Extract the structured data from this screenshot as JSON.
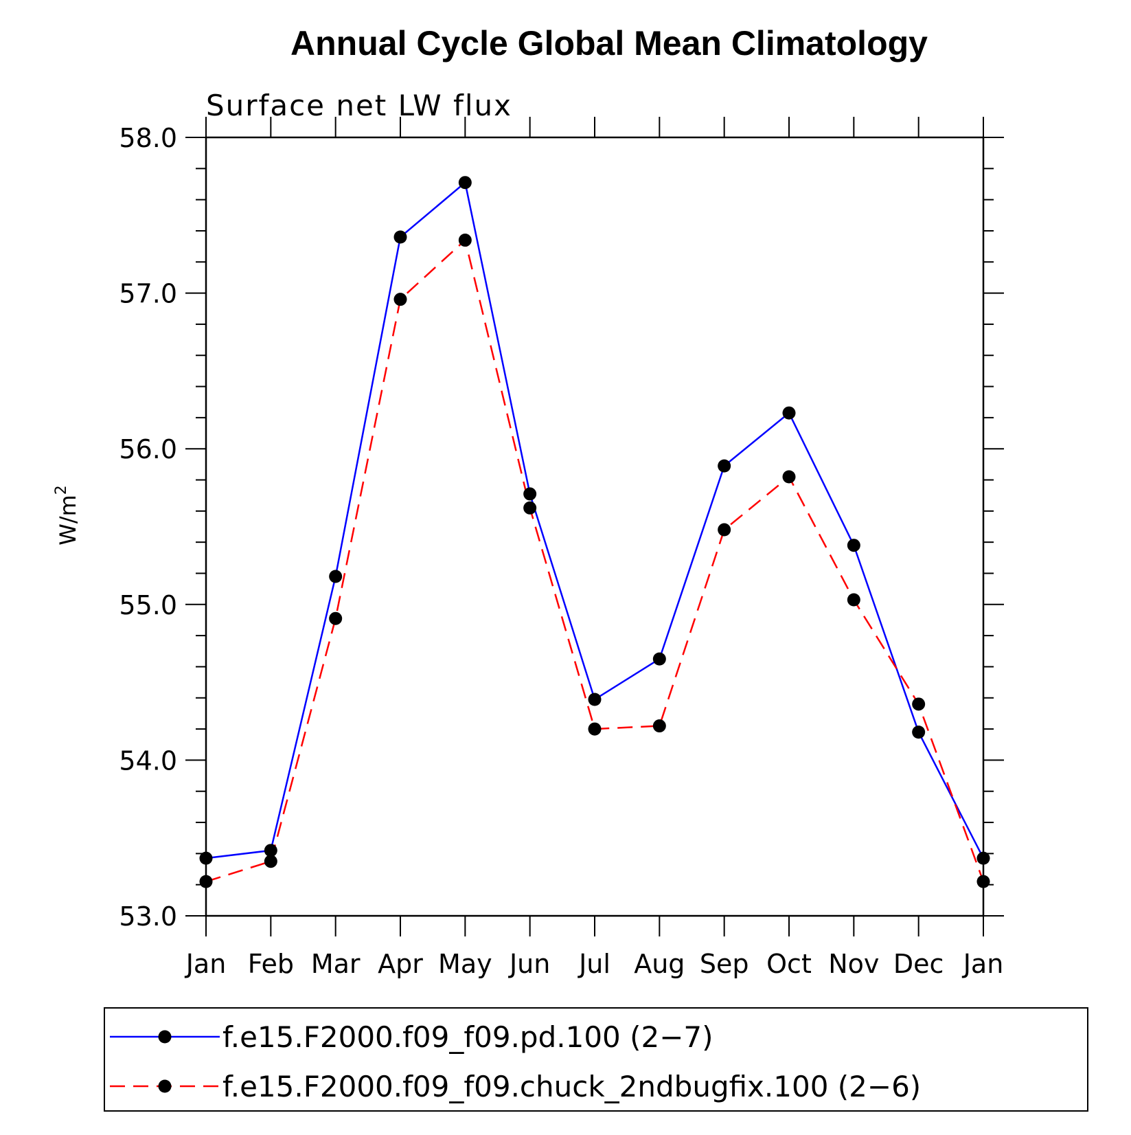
{
  "chart_data": {
    "type": "line",
    "title": "Annual Cycle Global Mean Climatology",
    "subtitle": "Surface net LW flux",
    "xlabel": "",
    "ylabel": "W/m",
    "ylabel_superscript": "2",
    "categories": [
      "Jan",
      "Feb",
      "Mar",
      "Apr",
      "May",
      "Jun",
      "Jul",
      "Aug",
      "Sep",
      "Oct",
      "Nov",
      "Dec",
      "Jan"
    ],
    "ylim": [
      53.0,
      58.0
    ],
    "yticks": [
      "53.0",
      "54.0",
      "55.0",
      "56.0",
      "57.0",
      "58.0"
    ],
    "series": [
      {
        "name": "f.e15.F2000.f09_f09.pd.100 (2−7)",
        "color": "#0000ff",
        "style": "solid",
        "values": [
          53.37,
          53.42,
          55.18,
          57.36,
          57.71,
          55.71,
          54.39,
          54.65,
          55.89,
          56.23,
          55.38,
          54.18,
          53.37
        ]
      },
      {
        "name": "f.e15.F2000.f09_f09.chuck_2ndbugfix.100 (2−6)",
        "color": "#ff0000",
        "style": "dashed",
        "values": [
          53.22,
          53.35,
          54.91,
          56.96,
          57.34,
          55.62,
          54.2,
          54.22,
          55.48,
          55.82,
          55.03,
          54.36,
          53.22
        ]
      }
    ],
    "legend_position": "bottom"
  }
}
